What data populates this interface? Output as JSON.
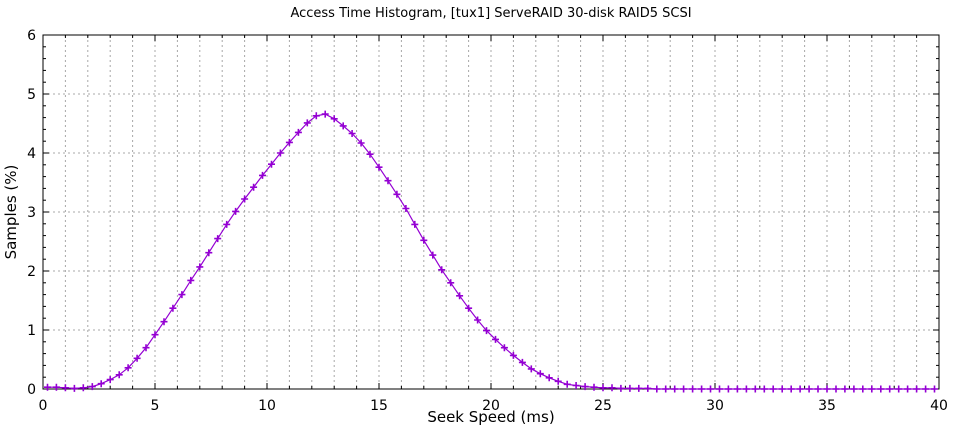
{
  "title": "Access Time Histogram, [tux1] ServeRAID 30-disk RAID5 SCSI",
  "chart_data": {
    "type": "line",
    "title": "Access Time Histogram, [tux1] ServeRAID 30-disk RAID5 SCSI",
    "xlabel": "Seek Speed (ms)",
    "ylabel": "Samples (%)",
    "xlim": [
      0,
      40
    ],
    "ylim": [
      0,
      6
    ],
    "x_major_ticks": [
      0,
      5,
      10,
      15,
      20,
      25,
      30,
      35,
      40
    ],
    "x_tick_labels": [
      "0",
      "5",
      "10",
      "15",
      "20",
      "25",
      "30",
      "35",
      "40"
    ],
    "y_major_ticks": [
      0,
      1,
      2,
      3,
      4,
      5,
      6
    ],
    "y_tick_labels": [
      "0",
      "1",
      "2",
      "3",
      "4",
      "5",
      "6"
    ],
    "x_minor_step": 1,
    "y_minor_step": 0.2,
    "grid": {
      "vertical_every": 1,
      "horizontal_every": 1,
      "style": "dashed",
      "color": "#a8a8a8"
    },
    "legend": "none",
    "series": [
      {
        "name": "access-time-histogram",
        "color": "#9400d3",
        "marker": "plus",
        "points": [
          [
            0.2,
            0.03
          ],
          [
            0.6,
            0.03
          ],
          [
            1.0,
            0.02
          ],
          [
            1.4,
            0.01
          ],
          [
            1.8,
            0.02
          ],
          [
            2.2,
            0.04
          ],
          [
            2.6,
            0.09
          ],
          [
            3.0,
            0.16
          ],
          [
            3.4,
            0.24
          ],
          [
            3.8,
            0.36
          ],
          [
            4.2,
            0.52
          ],
          [
            4.6,
            0.7
          ],
          [
            5.0,
            0.92
          ],
          [
            5.4,
            1.14
          ],
          [
            5.8,
            1.37
          ],
          [
            6.2,
            1.6
          ],
          [
            6.6,
            1.84
          ],
          [
            7.0,
            2.07
          ],
          [
            7.4,
            2.31
          ],
          [
            7.8,
            2.55
          ],
          [
            8.2,
            2.79
          ],
          [
            8.6,
            3.01
          ],
          [
            9.0,
            3.22
          ],
          [
            9.4,
            3.42
          ],
          [
            9.8,
            3.62
          ],
          [
            10.2,
            3.81
          ],
          [
            10.6,
            4.0
          ],
          [
            11.0,
            4.18
          ],
          [
            11.4,
            4.35
          ],
          [
            11.8,
            4.51
          ],
          [
            12.2,
            4.63
          ],
          [
            12.6,
            4.66
          ],
          [
            13.0,
            4.58
          ],
          [
            13.4,
            4.46
          ],
          [
            13.8,
            4.33
          ],
          [
            14.2,
            4.17
          ],
          [
            14.6,
            3.98
          ],
          [
            15.0,
            3.76
          ],
          [
            15.4,
            3.53
          ],
          [
            15.8,
            3.3
          ],
          [
            16.2,
            3.06
          ],
          [
            16.6,
            2.79
          ],
          [
            17.0,
            2.52
          ],
          [
            17.4,
            2.27
          ],
          [
            17.8,
            2.02
          ],
          [
            18.2,
            1.8
          ],
          [
            18.6,
            1.58
          ],
          [
            19.0,
            1.37
          ],
          [
            19.4,
            1.17
          ],
          [
            19.8,
            0.99
          ],
          [
            20.2,
            0.84
          ],
          [
            20.6,
            0.7
          ],
          [
            21.0,
            0.57
          ],
          [
            21.4,
            0.45
          ],
          [
            21.8,
            0.34
          ],
          [
            22.2,
            0.26
          ],
          [
            22.6,
            0.19
          ],
          [
            23.0,
            0.13
          ],
          [
            23.4,
            0.08
          ],
          [
            23.8,
            0.06
          ],
          [
            24.2,
            0.04
          ],
          [
            24.6,
            0.03
          ],
          [
            25.0,
            0.02
          ],
          [
            25.4,
            0.02
          ],
          [
            25.8,
            0.01
          ],
          [
            26.2,
            0.01
          ],
          [
            26.6,
            0.01
          ],
          [
            27.0,
            0.01
          ],
          [
            27.4,
            0.0
          ],
          [
            27.8,
            0.0
          ],
          [
            28.2,
            0.0
          ],
          [
            28.6,
            0.0
          ],
          [
            29.0,
            0.0
          ],
          [
            29.4,
            0.0
          ],
          [
            29.8,
            0.0
          ],
          [
            30.2,
            0.0
          ],
          [
            30.6,
            0.0
          ],
          [
            31.0,
            0.0
          ],
          [
            31.4,
            0.0
          ],
          [
            31.8,
            0.0
          ],
          [
            32.2,
            0.0
          ],
          [
            32.6,
            0.0
          ],
          [
            33.0,
            0.0
          ],
          [
            33.4,
            0.0
          ],
          [
            33.8,
            0.0
          ],
          [
            34.2,
            0.0
          ],
          [
            34.6,
            0.0
          ],
          [
            35.0,
            0.0
          ],
          [
            35.4,
            0.0
          ],
          [
            35.8,
            0.0
          ],
          [
            36.2,
            0.0
          ],
          [
            36.6,
            0.0
          ],
          [
            37.0,
            0.0
          ],
          [
            37.4,
            0.0
          ],
          [
            37.8,
            0.0
          ],
          [
            38.2,
            0.0
          ],
          [
            38.6,
            0.0
          ],
          [
            39.0,
            0.0
          ],
          [
            39.4,
            0.0
          ],
          [
            39.8,
            0.0
          ]
        ]
      }
    ]
  }
}
